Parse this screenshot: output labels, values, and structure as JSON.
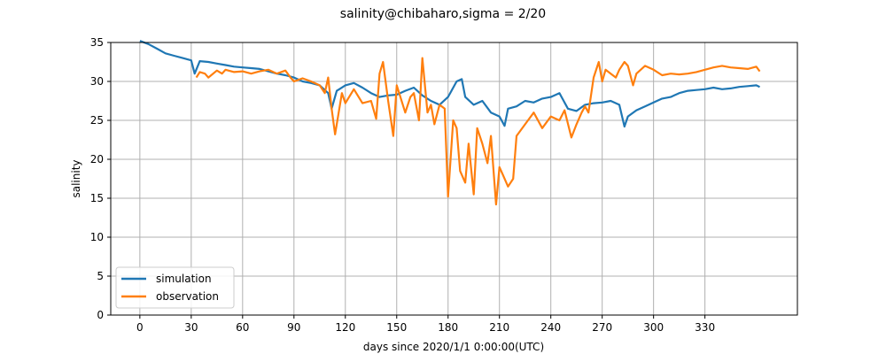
{
  "chart_data": {
    "type": "line",
    "title": "salinity@chibaharo,sigma = 2/20",
    "xlabel": "days since 2020/1/1 0:00:00(UTC)",
    "ylabel": "salinity",
    "xlim": [
      -17,
      384
    ],
    "ylim": [
      0,
      35
    ],
    "xticks": [
      0,
      30,
      60,
      90,
      120,
      150,
      180,
      210,
      240,
      270,
      300,
      330
    ],
    "yticks": [
      0,
      5,
      10,
      15,
      20,
      25,
      30,
      35
    ],
    "grid": true,
    "legend_position": "lower-left",
    "series": [
      {
        "name": "simulation",
        "color": "#1f77b4",
        "x": [
          0,
          5,
          10,
          15,
          20,
          25,
          30,
          32,
          35,
          40,
          45,
          50,
          55,
          60,
          65,
          70,
          75,
          80,
          85,
          90,
          95,
          100,
          105,
          110,
          112,
          115,
          120,
          125,
          130,
          135,
          140,
          145,
          150,
          155,
          160,
          165,
          170,
          175,
          180,
          185,
          188,
          190,
          195,
          200,
          205,
          210,
          213,
          215,
          220,
          225,
          230,
          235,
          240,
          245,
          250,
          255,
          260,
          265,
          270,
          275,
          280,
          283,
          285,
          290,
          295,
          300,
          305,
          310,
          315,
          320,
          325,
          330,
          335,
          340,
          345,
          350,
          355,
          360,
          362
        ],
        "y": [
          35.2,
          34.8,
          34.2,
          33.6,
          33.3,
          33.0,
          32.7,
          31.0,
          32.6,
          32.5,
          32.3,
          32.1,
          31.9,
          31.8,
          31.7,
          31.6,
          31.3,
          31.0,
          30.8,
          30.5,
          30.0,
          29.8,
          29.5,
          28.5,
          26.5,
          28.8,
          29.5,
          29.8,
          29.2,
          28.5,
          28.0,
          28.2,
          28.3,
          28.8,
          29.2,
          28.2,
          27.5,
          27.0,
          28.0,
          30.0,
          30.3,
          28.0,
          27.0,
          27.5,
          26.0,
          25.5,
          24.3,
          26.5,
          26.8,
          27.5,
          27.3,
          27.8,
          28.0,
          28.5,
          26.5,
          26.2,
          27.0,
          27.2,
          27.3,
          27.5,
          27.0,
          24.2,
          25.5,
          26.3,
          26.8,
          27.3,
          27.8,
          28.0,
          28.5,
          28.8,
          28.9,
          29.0,
          29.2,
          29.0,
          29.1,
          29.3,
          29.4,
          29.5,
          29.3
        ]
      },
      {
        "name": "observation",
        "color": "#ff7f0e",
        "x": [
          33,
          35,
          38,
          40,
          45,
          48,
          50,
          55,
          60,
          65,
          70,
          75,
          80,
          85,
          88,
          90,
          95,
          100,
          105,
          108,
          110,
          112,
          114,
          118,
          120,
          125,
          130,
          135,
          138,
          140,
          142,
          145,
          148,
          150,
          155,
          158,
          160,
          163,
          165,
          168,
          170,
          172,
          175,
          178,
          180,
          183,
          185,
          187,
          190,
          192,
          195,
          197,
          200,
          203,
          205,
          208,
          210,
          212,
          215,
          218,
          220,
          225,
          230,
          235,
          240,
          245,
          248,
          252,
          255,
          258,
          260,
          262,
          265,
          268,
          270,
          272,
          275,
          278,
          280,
          283,
          285,
          288,
          290,
          295,
          300,
          305,
          310,
          315,
          320,
          325,
          330,
          335,
          340,
          345,
          350,
          355,
          360,
          362
        ],
        "y": [
          30.5,
          31.2,
          31.0,
          30.5,
          31.4,
          31.0,
          31.5,
          31.2,
          31.3,
          31.0,
          31.3,
          31.5,
          31.0,
          31.4,
          30.5,
          30.0,
          30.4,
          30.0,
          29.5,
          28.5,
          30.5,
          26.5,
          23.2,
          28.5,
          27.2,
          29.0,
          27.2,
          27.5,
          25.2,
          31.0,
          32.5,
          27.5,
          23.0,
          29.5,
          26.0,
          28.0,
          28.5,
          25.0,
          33.0,
          26.0,
          27.0,
          24.5,
          27.0,
          26.5,
          15.2,
          25.0,
          24.0,
          18.5,
          17.0,
          22.0,
          15.5,
          24.0,
          22.0,
          19.5,
          23.0,
          14.2,
          19.0,
          18.0,
          16.5,
          17.5,
          23.0,
          24.5,
          26.0,
          24.0,
          25.5,
          25.0,
          26.3,
          22.8,
          24.5,
          26.0,
          26.8,
          26.0,
          30.5,
          32.5,
          30.0,
          31.5,
          31.0,
          30.5,
          31.5,
          32.5,
          32.0,
          29.5,
          31.0,
          32.0,
          31.5,
          30.8,
          31.0,
          30.9,
          31.0,
          31.2,
          31.5,
          31.8,
          32.0,
          31.8,
          31.7,
          31.6,
          31.9,
          31.3
        ]
      }
    ]
  }
}
